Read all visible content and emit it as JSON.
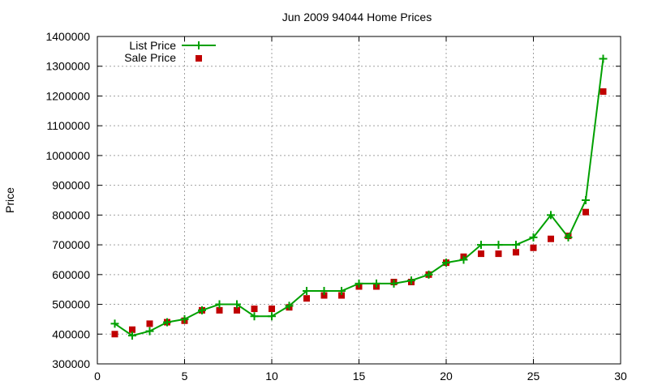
{
  "chart_data": {
    "type": "line",
    "title": "Jun 2009 94044 Home Prices",
    "xlabel": "",
    "ylabel": "Price",
    "xlim": [
      0,
      30
    ],
    "ylim": [
      300000,
      1400000
    ],
    "xticks": [
      0,
      5,
      10,
      15,
      20,
      25,
      30
    ],
    "yticks": [
      300000,
      400000,
      500000,
      600000,
      700000,
      800000,
      900000,
      1000000,
      1100000,
      1200000,
      1300000,
      1400000
    ],
    "grid": true,
    "legend_position": "top-left",
    "series": [
      {
        "name": "List Price",
        "style": "line-with-plus-markers",
        "color": "#00a000",
        "x": [
          1,
          2,
          3,
          4,
          5,
          6,
          7,
          8,
          9,
          10,
          11,
          12,
          13,
          14,
          15,
          16,
          17,
          18,
          19,
          20,
          21,
          22,
          23,
          24,
          25,
          26,
          27,
          28,
          29
        ],
        "y": [
          435000,
          395000,
          410000,
          440000,
          450000,
          480000,
          500000,
          500000,
          460000,
          460000,
          495000,
          545000,
          545000,
          545000,
          570000,
          570000,
          570000,
          580000,
          600000,
          640000,
          650000,
          700000,
          700000,
          700000,
          725000,
          800000,
          725000,
          850000,
          1325000
        ]
      },
      {
        "name": "Sale Price",
        "style": "square-markers",
        "color": "#c00000",
        "x": [
          1,
          2,
          3,
          4,
          5,
          6,
          7,
          8,
          9,
          10,
          11,
          12,
          13,
          14,
          15,
          16,
          17,
          18,
          19,
          20,
          21,
          22,
          23,
          24,
          25,
          26,
          27,
          28,
          29
        ],
        "y": [
          400000,
          415000,
          435000,
          440000,
          445000,
          480000,
          480000,
          480000,
          485000,
          485000,
          490000,
          520000,
          530000,
          530000,
          560000,
          560000,
          575000,
          575000,
          600000,
          640000,
          660000,
          670000,
          670000,
          675000,
          690000,
          720000,
          730000,
          810000,
          1215000
        ]
      }
    ]
  }
}
